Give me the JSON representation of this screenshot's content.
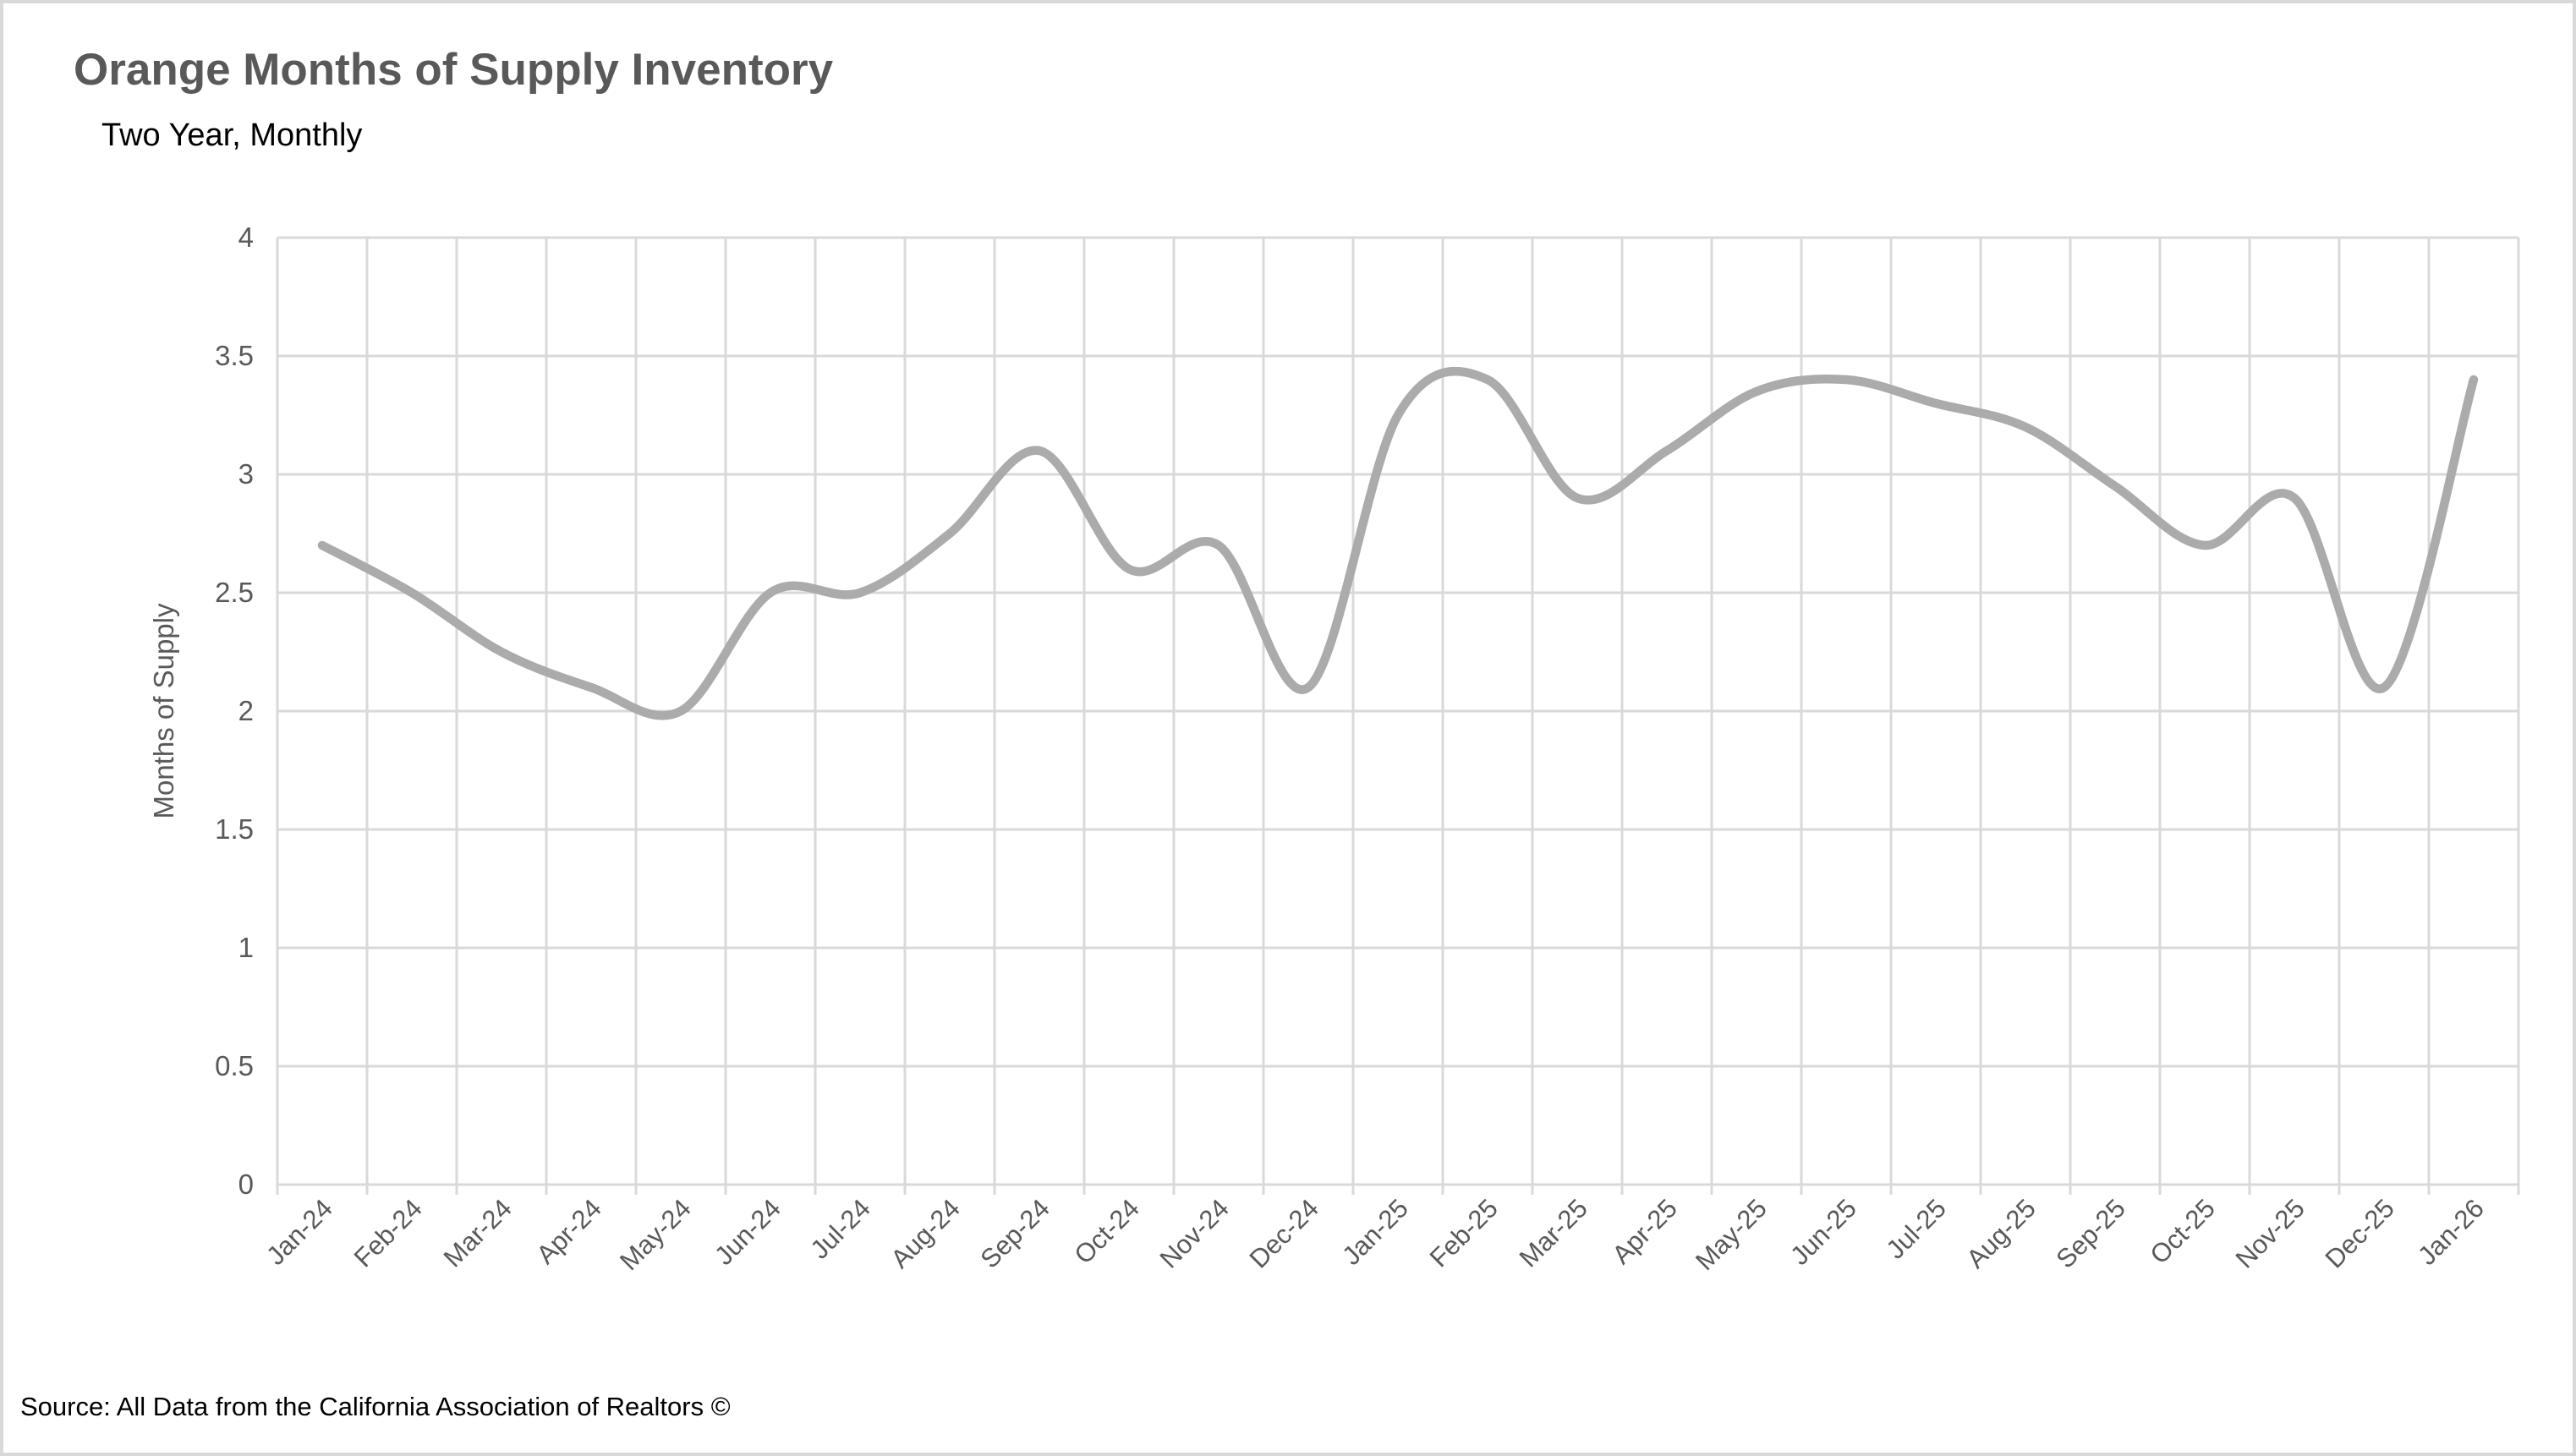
{
  "header": {
    "title": "Orange Months of Supply Inventory",
    "subtitle": "Two Year, Monthly"
  },
  "footer": {
    "source": "Source: All Data from the California Association of Realtors ©"
  },
  "colors": {
    "line": "#ababab",
    "gridline": "#d9d9d9",
    "axis_text": "#595959",
    "title_text": "#595959",
    "subtitle_text": "#000000",
    "source_text": "#000000",
    "background": "#ffffff",
    "border": "#d9d9d9"
  },
  "chart_data": {
    "type": "line",
    "smoothed": true,
    "title": "Orange Months of Supply Inventory",
    "subtitle": "Two Year, Monthly",
    "xlabel": "",
    "ylabel": "Months of Supply",
    "ylim": [
      0,
      4
    ],
    "ytick_step": 0.5,
    "ytick_labels": [
      "0",
      "0.5",
      "1",
      "1.5",
      "2",
      "2.5",
      "3",
      "3.5",
      "4"
    ],
    "grid": "both",
    "legend": "none",
    "categories": [
      "Jan-24",
      "Feb-24",
      "Mar-24",
      "Apr-24",
      "May-24",
      "Jun-24",
      "Jul-24",
      "Aug-24",
      "Sep-24",
      "Oct-24",
      "Nov-24",
      "Dec-24",
      "Jan-25",
      "Feb-25",
      "Mar-25",
      "Apr-25",
      "May-25",
      "Jun-25",
      "Jul-25",
      "Aug-25",
      "Sep-25",
      "Oct-25",
      "Nov-25",
      "Dec-25",
      "Jan-26"
    ],
    "series": [
      {
        "name": "Months of Supply",
        "color": "#ababab",
        "values": [
          2.7,
          2.5,
          2.25,
          2.1,
          2.0,
          2.5,
          2.5,
          2.75,
          3.1,
          2.6,
          2.7,
          2.1,
          3.25,
          3.4,
          2.9,
          3.1,
          3.35,
          3.4,
          3.3,
          3.2,
          2.95,
          2.7,
          2.9,
          2.1,
          3.4
        ]
      }
    ]
  }
}
